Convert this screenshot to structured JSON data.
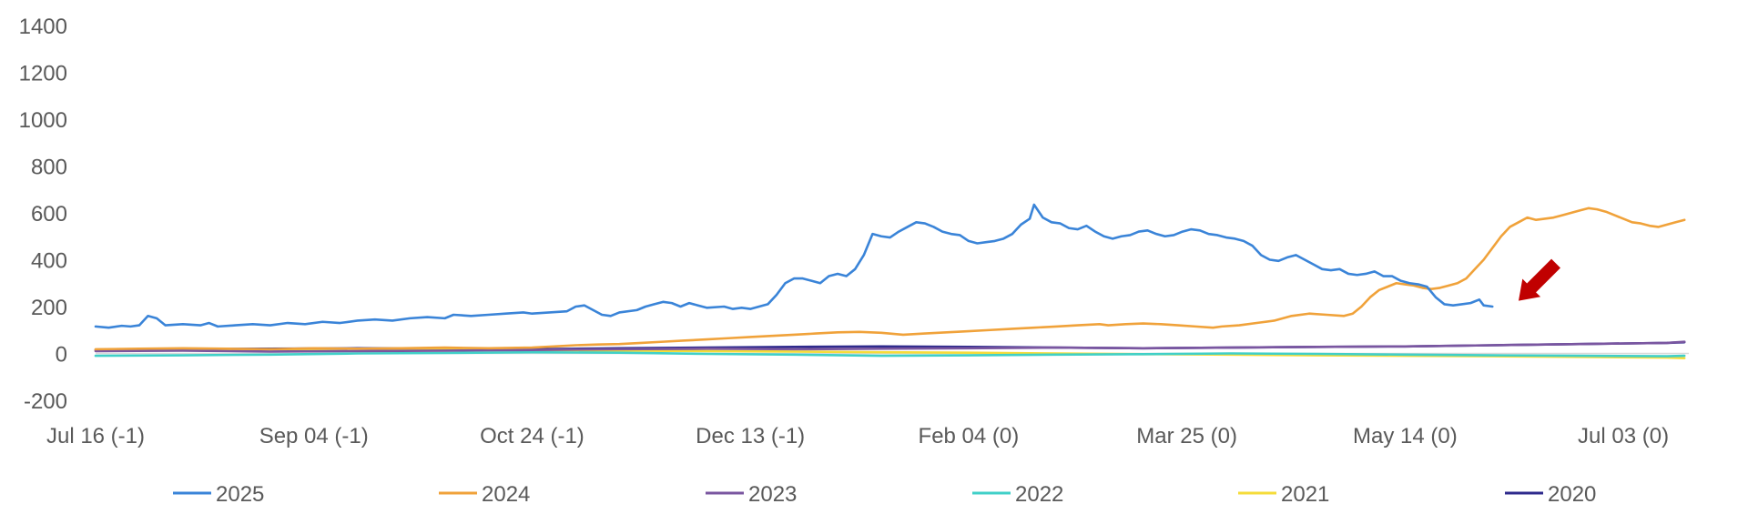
{
  "chart_data": {
    "type": "line",
    "title": "",
    "xlabel": "",
    "ylabel": "",
    "ylim": [
      -200,
      1400
    ],
    "y_ticks": [
      1400,
      1200,
      1000,
      800,
      600,
      400,
      200,
      0,
      -200
    ],
    "x_tick_labels": [
      "Jul 16 (-1)",
      "Sep 04 (-1)",
      "Oct 24 (-1)",
      "Dec 13 (-1)",
      "Feb 04 (0)",
      "Mar 25 (0)",
      "May 14 (0)",
      "Jul 03 (0)"
    ],
    "x_tick_positions": [
      0,
      50,
      100,
      150,
      200,
      250,
      300,
      350
    ],
    "x_range": [
      0,
      365
    ],
    "grid": false,
    "legend_position": "bottom",
    "zero_line": true,
    "annotation": {
      "type": "arrow",
      "color": "#c00000",
      "points_to_x": 326,
      "points_to_y": 225
    },
    "series": [
      {
        "name": "2025",
        "color": "#3a84d8",
        "points": [
          [
            0,
            115
          ],
          [
            3,
            110
          ],
          [
            6,
            118
          ],
          [
            8,
            115
          ],
          [
            10,
            120
          ],
          [
            12,
            160
          ],
          [
            14,
            150
          ],
          [
            16,
            120
          ],
          [
            20,
            125
          ],
          [
            24,
            120
          ],
          [
            26,
            130
          ],
          [
            28,
            115
          ],
          [
            32,
            120
          ],
          [
            36,
            125
          ],
          [
            40,
            120
          ],
          [
            44,
            130
          ],
          [
            48,
            125
          ],
          [
            52,
            135
          ],
          [
            56,
            130
          ],
          [
            60,
            140
          ],
          [
            64,
            145
          ],
          [
            68,
            140
          ],
          [
            72,
            150
          ],
          [
            76,
            155
          ],
          [
            80,
            150
          ],
          [
            82,
            165
          ],
          [
            86,
            160
          ],
          [
            90,
            165
          ],
          [
            94,
            170
          ],
          [
            98,
            175
          ],
          [
            100,
            170
          ],
          [
            104,
            175
          ],
          [
            108,
            180
          ],
          [
            110,
            200
          ],
          [
            112,
            205
          ],
          [
            114,
            185
          ],
          [
            116,
            165
          ],
          [
            118,
            160
          ],
          [
            120,
            175
          ],
          [
            124,
            185
          ],
          [
            126,
            200
          ],
          [
            128,
            210
          ],
          [
            130,
            220
          ],
          [
            132,
            215
          ],
          [
            134,
            200
          ],
          [
            136,
            215
          ],
          [
            138,
            205
          ],
          [
            140,
            195
          ],
          [
            144,
            200
          ],
          [
            146,
            190
          ],
          [
            148,
            195
          ],
          [
            150,
            190
          ],
          [
            152,
            200
          ],
          [
            154,
            210
          ],
          [
            156,
            250
          ],
          [
            158,
            300
          ],
          [
            160,
            320
          ],
          [
            162,
            320
          ],
          [
            164,
            310
          ],
          [
            166,
            300
          ],
          [
            168,
            330
          ],
          [
            170,
            340
          ],
          [
            172,
            330
          ],
          [
            174,
            360
          ],
          [
            176,
            420
          ],
          [
            178,
            510
          ],
          [
            180,
            500
          ],
          [
            182,
            495
          ],
          [
            184,
            520
          ],
          [
            186,
            540
          ],
          [
            188,
            560
          ],
          [
            190,
            555
          ],
          [
            192,
            540
          ],
          [
            194,
            520
          ],
          [
            196,
            510
          ],
          [
            198,
            505
          ],
          [
            200,
            480
          ],
          [
            202,
            470
          ],
          [
            204,
            475
          ],
          [
            206,
            480
          ],
          [
            208,
            490
          ],
          [
            210,
            510
          ],
          [
            212,
            550
          ],
          [
            214,
            575
          ],
          [
            215,
            635
          ],
          [
            217,
            580
          ],
          [
            219,
            560
          ],
          [
            221,
            555
          ],
          [
            223,
            535
          ],
          [
            225,
            530
          ],
          [
            227,
            545
          ],
          [
            229,
            520
          ],
          [
            231,
            500
          ],
          [
            233,
            490
          ],
          [
            235,
            500
          ],
          [
            237,
            505
          ],
          [
            239,
            520
          ],
          [
            241,
            525
          ],
          [
            243,
            510
          ],
          [
            245,
            500
          ],
          [
            247,
            505
          ],
          [
            249,
            520
          ],
          [
            251,
            530
          ],
          [
            253,
            525
          ],
          [
            255,
            510
          ],
          [
            257,
            505
          ],
          [
            259,
            495
          ],
          [
            261,
            490
          ],
          [
            263,
            480
          ],
          [
            265,
            460
          ],
          [
            267,
            420
          ],
          [
            269,
            400
          ],
          [
            271,
            395
          ],
          [
            273,
            410
          ],
          [
            275,
            420
          ],
          [
            277,
            400
          ],
          [
            279,
            380
          ],
          [
            281,
            360
          ],
          [
            283,
            355
          ],
          [
            285,
            360
          ],
          [
            287,
            340
          ],
          [
            289,
            335
          ],
          [
            291,
            340
          ],
          [
            293,
            350
          ],
          [
            295,
            330
          ],
          [
            297,
            330
          ],
          [
            299,
            310
          ],
          [
            301,
            300
          ],
          [
            303,
            295
          ],
          [
            305,
            285
          ],
          [
            307,
            240
          ],
          [
            309,
            210
          ],
          [
            311,
            205
          ],
          [
            313,
            210
          ],
          [
            315,
            215
          ],
          [
            317,
            230
          ],
          [
            318,
            205
          ],
          [
            320,
            200
          ]
        ]
      },
      {
        "name": "2024",
        "color": "#f0a23a",
        "points": [
          [
            0,
            18
          ],
          [
            10,
            20
          ],
          [
            20,
            22
          ],
          [
            30,
            20
          ],
          [
            40,
            18
          ],
          [
            50,
            22
          ],
          [
            60,
            20
          ],
          [
            70,
            22
          ],
          [
            80,
            25
          ],
          [
            90,
            22
          ],
          [
            100,
            25
          ],
          [
            105,
            30
          ],
          [
            110,
            35
          ],
          [
            115,
            38
          ],
          [
            120,
            40
          ],
          [
            125,
            45
          ],
          [
            130,
            50
          ],
          [
            135,
            55
          ],
          [
            140,
            60
          ],
          [
            145,
            65
          ],
          [
            150,
            70
          ],
          [
            155,
            75
          ],
          [
            160,
            80
          ],
          [
            165,
            85
          ],
          [
            170,
            90
          ],
          [
            175,
            92
          ],
          [
            180,
            88
          ],
          [
            185,
            80
          ],
          [
            190,
            85
          ],
          [
            195,
            90
          ],
          [
            200,
            95
          ],
          [
            205,
            100
          ],
          [
            210,
            105
          ],
          [
            215,
            110
          ],
          [
            220,
            115
          ],
          [
            225,
            120
          ],
          [
            230,
            125
          ],
          [
            232,
            120
          ],
          [
            236,
            125
          ],
          [
            240,
            128
          ],
          [
            244,
            125
          ],
          [
            248,
            120
          ],
          [
            252,
            115
          ],
          [
            256,
            110
          ],
          [
            258,
            115
          ],
          [
            262,
            120
          ],
          [
            266,
            130
          ],
          [
            270,
            140
          ],
          [
            274,
            160
          ],
          [
            278,
            170
          ],
          [
            282,
            165
          ],
          [
            286,
            160
          ],
          [
            288,
            170
          ],
          [
            290,
            200
          ],
          [
            292,
            240
          ],
          [
            294,
            270
          ],
          [
            296,
            285
          ],
          [
            298,
            300
          ],
          [
            300,
            295
          ],
          [
            302,
            290
          ],
          [
            304,
            280
          ],
          [
            306,
            275
          ],
          [
            308,
            280
          ],
          [
            310,
            290
          ],
          [
            312,
            300
          ],
          [
            314,
            320
          ],
          [
            316,
            360
          ],
          [
            318,
            400
          ],
          [
            320,
            450
          ],
          [
            322,
            500
          ],
          [
            324,
            540
          ],
          [
            326,
            560
          ],
          [
            328,
            580
          ],
          [
            330,
            570
          ],
          [
            332,
            575
          ],
          [
            334,
            580
          ],
          [
            336,
            590
          ],
          [
            338,
            600
          ],
          [
            340,
            610
          ],
          [
            342,
            620
          ],
          [
            344,
            615
          ],
          [
            346,
            605
          ],
          [
            348,
            590
          ],
          [
            350,
            575
          ],
          [
            352,
            560
          ],
          [
            354,
            555
          ],
          [
            356,
            545
          ],
          [
            358,
            540
          ],
          [
            360,
            550
          ],
          [
            362,
            560
          ],
          [
            364,
            570
          ]
        ]
      },
      {
        "name": "2023",
        "color": "#7a56a0",
        "points": [
          [
            0,
            10
          ],
          [
            20,
            12
          ],
          [
            40,
            8
          ],
          [
            60,
            10
          ],
          [
            80,
            12
          ],
          [
            100,
            15
          ],
          [
            120,
            18
          ],
          [
            140,
            20
          ],
          [
            160,
            18
          ],
          [
            180,
            20
          ],
          [
            200,
            22
          ],
          [
            220,
            25
          ],
          [
            240,
            22
          ],
          [
            260,
            25
          ],
          [
            280,
            28
          ],
          [
            300,
            30
          ],
          [
            320,
            35
          ],
          [
            340,
            40
          ],
          [
            360,
            45
          ],
          [
            364,
            50
          ]
        ]
      },
      {
        "name": "2022",
        "color": "#40d0c8",
        "points": [
          [
            0,
            -10
          ],
          [
            20,
            -8
          ],
          [
            40,
            -5
          ],
          [
            60,
            0
          ],
          [
            80,
            2
          ],
          [
            100,
            5
          ],
          [
            120,
            3
          ],
          [
            140,
            -2
          ],
          [
            160,
            -5
          ],
          [
            180,
            -10
          ],
          [
            200,
            -8
          ],
          [
            220,
            -5
          ],
          [
            240,
            -3
          ],
          [
            260,
            0
          ],
          [
            280,
            -2
          ],
          [
            300,
            -5
          ],
          [
            320,
            -8
          ],
          [
            340,
            -10
          ],
          [
            360,
            -12
          ],
          [
            364,
            -10
          ]
        ]
      },
      {
        "name": "2021",
        "color": "#f5dc3a",
        "points": [
          [
            0,
            12
          ],
          [
            20,
            15
          ],
          [
            40,
            18
          ],
          [
            60,
            20
          ],
          [
            80,
            18
          ],
          [
            100,
            15
          ],
          [
            120,
            12
          ],
          [
            140,
            10
          ],
          [
            160,
            8
          ],
          [
            180,
            5
          ],
          [
            200,
            3
          ],
          [
            220,
            0
          ],
          [
            240,
            -3
          ],
          [
            260,
            -5
          ],
          [
            280,
            -8
          ],
          [
            300,
            -10
          ],
          [
            320,
            -12
          ],
          [
            340,
            -15
          ],
          [
            360,
            -18
          ],
          [
            364,
            -20
          ]
        ]
      },
      {
        "name": "2020",
        "color": "#2e2a8c",
        "points": [
          [
            0,
            15
          ],
          [
            20,
            18
          ],
          [
            40,
            20
          ],
          [
            60,
            22
          ],
          [
            80,
            20
          ],
          [
            100,
            18
          ],
          [
            120,
            22
          ],
          [
            140,
            25
          ],
          [
            160,
            28
          ],
          [
            180,
            30
          ],
          [
            200,
            28
          ],
          [
            220,
            25
          ],
          [
            240,
            22
          ],
          [
            260,
            25
          ],
          [
            280,
            28
          ],
          [
            300,
            30
          ],
          [
            320,
            35
          ],
          [
            340,
            40
          ],
          [
            360,
            45
          ],
          [
            364,
            48
          ]
        ]
      }
    ]
  }
}
